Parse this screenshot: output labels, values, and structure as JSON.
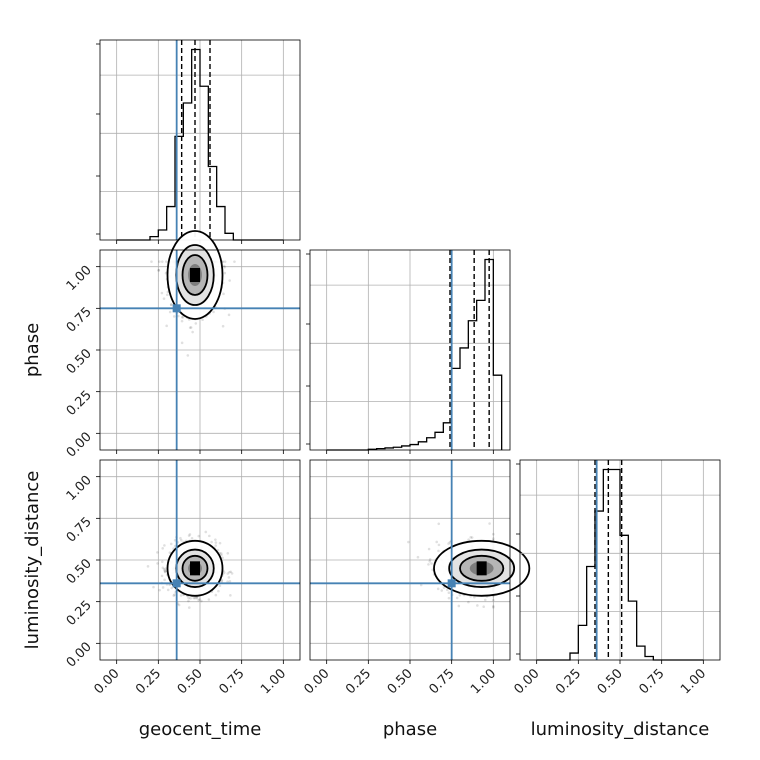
{
  "chart_data": {
    "type": "corner",
    "parameters": [
      "geocent_time",
      "phase",
      "luminosity_distance"
    ],
    "truths": {
      "geocent_time": 0.36,
      "phase": 0.75,
      "luminosity_distance": 0.36
    },
    "tick_labels": [
      "0.00",
      "0.25",
      "0.50",
      "0.75",
      "1.00"
    ],
    "axis_range": [
      -0.1,
      1.1
    ],
    "grid": true,
    "marginals": [
      {
        "parameter": "geocent_time",
        "quantiles": [
          0.39,
          0.47,
          0.56
        ],
        "bin_edges": [
          0.0,
          0.05,
          0.1,
          0.15,
          0.2,
          0.25,
          0.3,
          0.35,
          0.4,
          0.45,
          0.5,
          0.55,
          0.6,
          0.65,
          0.7,
          0.75,
          0.8,
          0.85,
          0.9,
          0.95,
          1.0
        ],
        "counts": [
          0,
          0,
          0,
          0,
          1,
          3,
          10,
          31,
          41,
          57,
          46,
          22,
          10,
          2,
          0,
          0,
          0,
          0,
          0,
          0
        ]
      },
      {
        "parameter": "phase",
        "quantiles": [
          0.74,
          0.885,
          0.975
        ],
        "bin_edges": [
          0.0,
          0.05,
          0.1,
          0.15,
          0.2,
          0.25,
          0.3,
          0.35,
          0.4,
          0.45,
          0.5,
          0.55,
          0.6,
          0.65,
          0.7,
          0.75,
          0.8,
          0.85,
          0.9,
          0.95,
          1.0,
          1.05
        ],
        "counts": [
          0,
          0,
          0,
          0,
          0,
          0.5,
          1,
          1.5,
          2,
          3,
          4,
          6,
          9,
          13,
          20,
          60,
          75,
          95,
          110,
          140,
          55
        ]
      },
      {
        "parameter": "luminosity_distance",
        "quantiles": [
          0.35,
          0.43,
          0.51
        ],
        "bin_edges": [
          0.0,
          0.05,
          0.1,
          0.15,
          0.2,
          0.25,
          0.3,
          0.35,
          0.4,
          0.45,
          0.5,
          0.55,
          0.6,
          0.65,
          0.7,
          0.75,
          0.8,
          0.85,
          0.9,
          0.95,
          1.0
        ],
        "counts": [
          0,
          0,
          0,
          0,
          2,
          10,
          27,
          43,
          55,
          55,
          36,
          17,
          4,
          1,
          0,
          0,
          0,
          0,
          0,
          0
        ]
      }
    ],
    "joint": [
      {
        "x": "geocent_time",
        "y": "phase",
        "mode": [
          0.47,
          0.95
        ],
        "spread": [
          0.075,
          0.12
        ]
      },
      {
        "x": "geocent_time",
        "y": "luminosity_distance",
        "mode": [
          0.47,
          0.45
        ],
        "spread": [
          0.075,
          0.075
        ]
      },
      {
        "x": "phase",
        "y": "luminosity_distance",
        "mode": [
          0.93,
          0.45
        ],
        "spread": [
          0.13,
          0.075
        ]
      }
    ]
  }
}
